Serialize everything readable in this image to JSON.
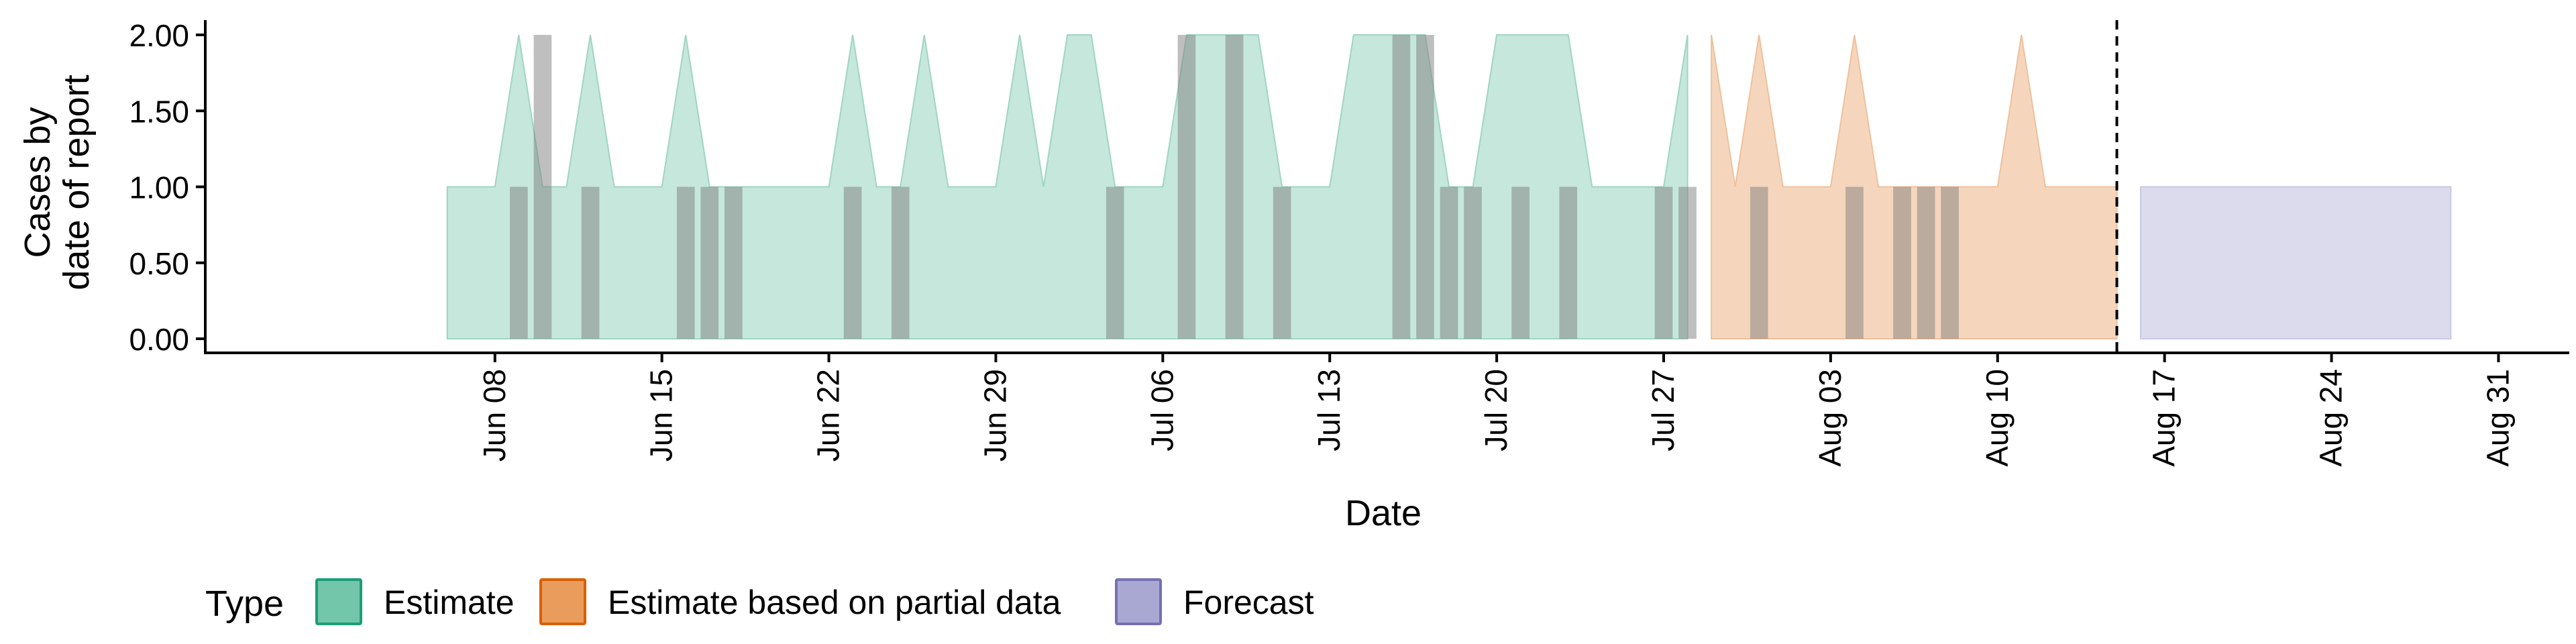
{
  "chart_data": {
    "type": "area",
    "xlabel": "Date",
    "ylabel_lines": [
      "Cases by",
      "date of report"
    ],
    "xlim": [
      "2020-06-03",
      "2020-09-01"
    ],
    "ylim": [
      0,
      2
    ],
    "y_ticks": [
      "0.00",
      "0.50",
      "1.00",
      "1.50",
      "2.00"
    ],
    "x_tick_labels": [
      {
        "date": "2020-06-08",
        "label": "Jun 08"
      },
      {
        "date": "2020-06-15",
        "label": "Jun 15"
      },
      {
        "date": "2020-06-22",
        "label": "Jun 22"
      },
      {
        "date": "2020-06-29",
        "label": "Jun 29"
      },
      {
        "date": "2020-07-06",
        "label": "Jul 06"
      },
      {
        "date": "2020-07-13",
        "label": "Jul 13"
      },
      {
        "date": "2020-07-20",
        "label": "Jul 20"
      },
      {
        "date": "2020-07-27",
        "label": "Jul 27"
      },
      {
        "date": "2020-08-03",
        "label": "Aug 03"
      },
      {
        "date": "2020-08-10",
        "label": "Aug 10"
      },
      {
        "date": "2020-08-17",
        "label": "Aug 17"
      },
      {
        "date": "2020-08-24",
        "label": "Aug 24"
      },
      {
        "date": "2020-08-31",
        "label": "Aug 31"
      }
    ],
    "grid": false,
    "legend": {
      "title": "Type",
      "placement": "bottom",
      "items": [
        {
          "label": "Estimate",
          "fill": "#74c6aa",
          "border": "#1b9e77"
        },
        {
          "label": "Estimate based on partial data",
          "fill": "#e99c5c",
          "border": "#d95f02"
        },
        {
          "label": "Forecast",
          "fill": "#a9a8d2",
          "border": "#7570b3"
        }
      ]
    },
    "forecast_start_date": "2020-08-15",
    "series": [
      {
        "name": "Estimate",
        "fill": "#c5e7dc",
        "stroke": "#9fd5c1",
        "dates": [
          "2020-06-06",
          "2020-06-07",
          "2020-06-08",
          "2020-06-09",
          "2020-06-10",
          "2020-06-11",
          "2020-06-12",
          "2020-06-13",
          "2020-06-14",
          "2020-06-15",
          "2020-06-16",
          "2020-06-17",
          "2020-06-18",
          "2020-06-19",
          "2020-06-20",
          "2020-06-21",
          "2020-06-22",
          "2020-06-23",
          "2020-06-24",
          "2020-06-25",
          "2020-06-26",
          "2020-06-27",
          "2020-06-28",
          "2020-06-29",
          "2020-06-30",
          "2020-07-01",
          "2020-07-02",
          "2020-07-03",
          "2020-07-04",
          "2020-07-05",
          "2020-07-06",
          "2020-07-07",
          "2020-07-08",
          "2020-07-09",
          "2020-07-10",
          "2020-07-11",
          "2020-07-12",
          "2020-07-13",
          "2020-07-14",
          "2020-07-15",
          "2020-07-16",
          "2020-07-17",
          "2020-07-18",
          "2020-07-19",
          "2020-07-20",
          "2020-07-21",
          "2020-07-22",
          "2020-07-23",
          "2020-07-24",
          "2020-07-25",
          "2020-07-26",
          "2020-07-27",
          "2020-07-28"
        ],
        "values": [
          1,
          1,
          1,
          2,
          1,
          1,
          2,
          1,
          1,
          1,
          2,
          1,
          1,
          1,
          1,
          1,
          1,
          2,
          1,
          1,
          2,
          1,
          1,
          1,
          2,
          1,
          2,
          2,
          1,
          1,
          1,
          2,
          2,
          2,
          2,
          1,
          1,
          1,
          2,
          2,
          2,
          2,
          1,
          1,
          2,
          2,
          2,
          2,
          1,
          1,
          1,
          1,
          2
        ]
      },
      {
        "name": "Estimate based on partial data",
        "fill": "#f5d6bc",
        "stroke": "#efc09c",
        "dates": [
          "2020-07-29",
          "2020-07-30",
          "2020-07-31",
          "2020-08-01",
          "2020-08-02",
          "2020-08-03",
          "2020-08-04",
          "2020-08-05",
          "2020-08-06",
          "2020-08-07",
          "2020-08-08",
          "2020-08-09",
          "2020-08-10",
          "2020-08-11",
          "2020-08-12",
          "2020-08-13",
          "2020-08-14",
          "2020-08-15"
        ],
        "values": [
          2,
          1,
          2,
          1,
          1,
          1,
          2,
          1,
          1,
          1,
          1,
          1,
          1,
          2,
          1,
          1,
          1,
          1
        ]
      },
      {
        "name": "Forecast",
        "fill": "#dcdbee",
        "stroke": "#c9c8e3",
        "dates": [
          "2020-08-16",
          "2020-08-29"
        ],
        "values": [
          1,
          1
        ]
      }
    ],
    "reported_cases": {
      "bar_color": "#7f7f7f",
      "dates": [
        "2020-06-09",
        "2020-06-10",
        "2020-06-12",
        "2020-06-16",
        "2020-06-17",
        "2020-06-18",
        "2020-06-23",
        "2020-06-25",
        "2020-07-04",
        "2020-07-07",
        "2020-07-09",
        "2020-07-11",
        "2020-07-16",
        "2020-07-17",
        "2020-07-18",
        "2020-07-19",
        "2020-07-21",
        "2020-07-23",
        "2020-07-27",
        "2020-07-28",
        "2020-07-31",
        "2020-08-04",
        "2020-08-06",
        "2020-08-07",
        "2020-08-08"
      ],
      "values": [
        1,
        2,
        1,
        1,
        1,
        1,
        1,
        1,
        1,
        2,
        2,
        1,
        2,
        2,
        1,
        1,
        1,
        1,
        1,
        1,
        1,
        1,
        1,
        1,
        1
      ]
    }
  }
}
